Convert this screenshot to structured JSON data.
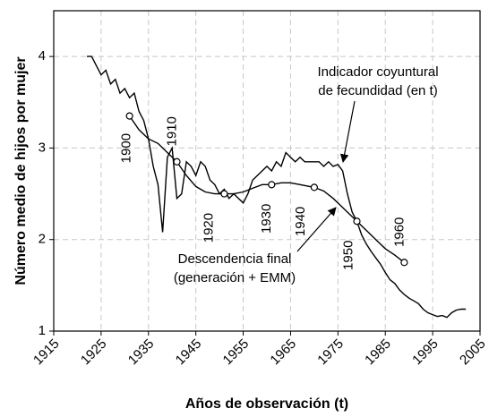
{
  "chart_data": {
    "type": "line",
    "xlabel": "Años de observación (t)",
    "ylabel": "Número medio de hijos por mujer",
    "xlim": [
      1915,
      2005
    ],
    "xticks": [
      1915,
      1925,
      1935,
      1945,
      1955,
      1965,
      1975,
      1985,
      1995,
      2005
    ],
    "ylim": [
      1,
      4.5
    ],
    "yticks": [
      1,
      2,
      3,
      4
    ],
    "grid": true,
    "series": [
      {
        "color": "#000000",
        "x": [
          1922,
          1923,
          1924,
          1925,
          1926,
          1927,
          1928,
          1929,
          1930,
          1931,
          1932,
          1933,
          1934,
          1935,
          1936,
          1937,
          1938,
          1939,
          1940,
          1941,
          1942,
          1943,
          1944,
          1945,
          1946,
          1947,
          1948,
          1949,
          1950,
          1951,
          1952,
          1953,
          1954,
          1955,
          1956,
          1957,
          1958,
          1959,
          1960,
          1961,
          1962,
          1963,
          1964,
          1965,
          1966,
          1967,
          1968,
          1969,
          1970,
          1971,
          1972,
          1973,
          1974,
          1975,
          1976,
          1977,
          1978,
          1979,
          1980,
          1981,
          1982,
          1983,
          1984,
          1985,
          1986,
          1987,
          1988,
          1989,
          1990,
          1991,
          1992,
          1993,
          1994,
          1995,
          1996,
          1997,
          1998,
          1999,
          2000,
          2001,
          2002
        ],
        "values": [
          4.0,
          4.0,
          3.9,
          3.8,
          3.85,
          3.7,
          3.75,
          3.6,
          3.65,
          3.55,
          3.6,
          3.4,
          3.3,
          3.1,
          2.8,
          2.6,
          2.08,
          2.9,
          3.0,
          2.45,
          2.5,
          2.85,
          2.8,
          2.7,
          2.85,
          2.8,
          2.65,
          2.6,
          2.5,
          2.55,
          2.45,
          2.5,
          2.45,
          2.4,
          2.5,
          2.65,
          2.7,
          2.75,
          2.8,
          2.75,
          2.85,
          2.8,
          2.95,
          2.9,
          2.85,
          2.9,
          2.85,
          2.85,
          2.85,
          2.85,
          2.8,
          2.85,
          2.8,
          2.82,
          2.75,
          2.5,
          2.3,
          2.2,
          2.05,
          1.95,
          1.87,
          1.8,
          1.73,
          1.64,
          1.56,
          1.52,
          1.45,
          1.4,
          1.36,
          1.33,
          1.3,
          1.24,
          1.2,
          1.18,
          1.16,
          1.17,
          1.15,
          1.2,
          1.23,
          1.24,
          1.24
        ]
      },
      {
        "color": "#000000",
        "x": [
          1931,
          1933,
          1935,
          1937,
          1939,
          1941,
          1943,
          1945,
          1947,
          1949,
          1951,
          1953,
          1955,
          1957,
          1959,
          1961,
          1963,
          1965,
          1967,
          1970,
          1972,
          1974,
          1976,
          1979,
          1981,
          1983,
          1985,
          1987,
          1989
        ],
        "values": [
          3.35,
          3.2,
          3.1,
          3.05,
          2.95,
          2.85,
          2.7,
          2.58,
          2.52,
          2.5,
          2.5,
          2.5,
          2.52,
          2.56,
          2.6,
          2.6,
          2.62,
          2.62,
          2.6,
          2.57,
          2.53,
          2.45,
          2.35,
          2.2,
          2.1,
          2.0,
          1.9,
          1.83,
          1.75
        ]
      }
    ],
    "generations": {
      "labels": [
        "1900",
        "1910",
        "1920",
        "1930",
        "1940",
        "1950",
        "1960"
      ],
      "x": [
        1931,
        1941,
        1951,
        1961,
        1970,
        1979,
        1989
      ],
      "values": [
        3.35,
        2.85,
        2.5,
        2.6,
        2.57,
        2.2,
        1.75
      ]
    },
    "annotations": [
      {
        "lines": [
          "Indicador coyuntural",
          "de fecundidad (en t)"
        ]
      },
      {
        "lines": [
          "Descendencia final",
          "(generación + EMM)"
        ]
      }
    ]
  }
}
